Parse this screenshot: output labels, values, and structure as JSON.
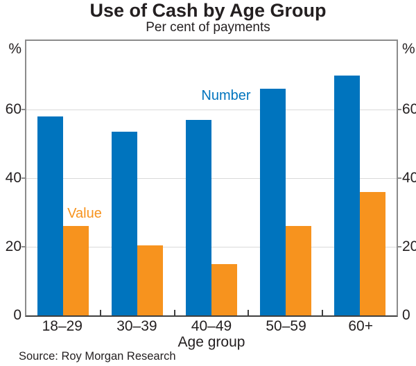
{
  "header": {
    "title": "Use of Cash by Age Group",
    "subtitle": "Per cent of payments"
  },
  "chart_data": {
    "type": "bar",
    "categories": [
      "18–29",
      "30–39",
      "40–49",
      "50–59",
      "60+"
    ],
    "series": [
      {
        "name": "Number",
        "color": "#0074BE",
        "values": [
          58,
          53.5,
          57,
          66,
          70
        ]
      },
      {
        "name": "Value",
        "color": "#F7931E",
        "values": [
          26,
          20.5,
          15,
          26,
          36
        ]
      }
    ],
    "title": "Use of Cash by Age Group",
    "subtitle": "Per cent of payments",
    "xlabel": "Age group",
    "ylabel": "%",
    "unit_left": "%",
    "unit_right": "%",
    "ylim": [
      0,
      80
    ],
    "yticks": [
      0,
      20,
      40,
      60
    ],
    "grid": true,
    "legend_position": "inline-annotations",
    "annotations": [
      {
        "text": "Number",
        "series": "Number"
      },
      {
        "text": "Value",
        "series": "Value"
      }
    ]
  },
  "footer": {
    "source": "Source: Roy Morgan Research"
  },
  "colors": {
    "bar_blue": "#0074BE",
    "bar_orange": "#F7931E",
    "text": "#231F20",
    "gridline": "#D9D9D9",
    "plot_border": "#8B8B8B",
    "axis_line": "#3F3F3F",
    "background": "#FFFFFF"
  }
}
